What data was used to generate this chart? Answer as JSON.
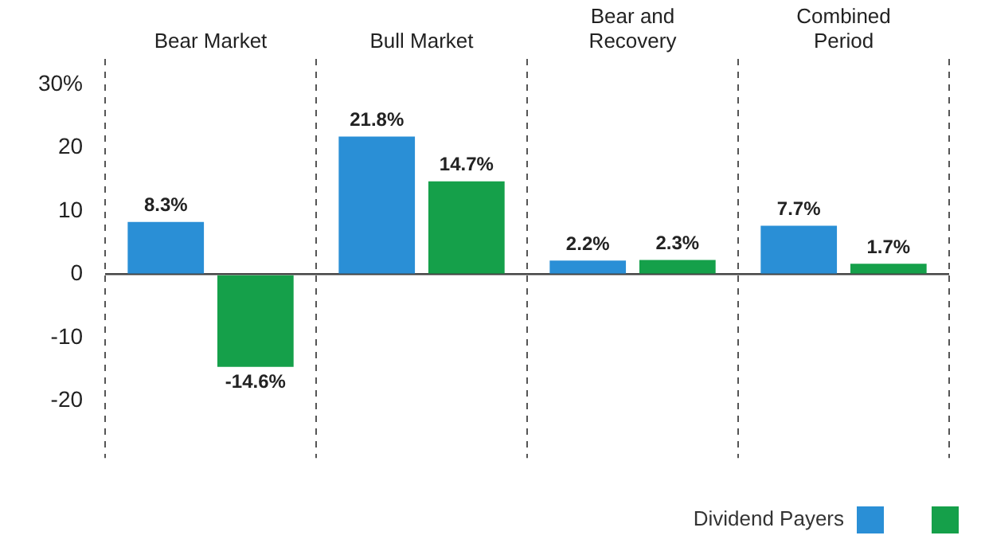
{
  "chart_data": {
    "type": "bar",
    "categories": [
      "Bear Market",
      "Bull Market",
      "Bear and Recovery",
      "Combined Period"
    ],
    "series": [
      {
        "name": "Dividend Payers",
        "color": "#2a8fd6",
        "values": [
          8.3,
          21.8,
          2.2,
          7.7
        ],
        "value_labels": [
          "8.3%",
          "21.8%",
          "2.2%",
          "7.7%"
        ]
      },
      {
        "color": "#15a04a",
        "values": [
          -14.6,
          14.7,
          2.3,
          1.7
        ],
        "value_labels": [
          "-14.6%",
          "14.7%",
          "2.3%",
          "1.7%"
        ]
      }
    ],
    "ylim": [
      -29,
      34
    ],
    "yticks": [
      {
        "value": 30,
        "label": "30%"
      },
      20,
      10,
      0,
      -10,
      -20
    ],
    "grid": "x",
    "legend": "bottom right"
  }
}
